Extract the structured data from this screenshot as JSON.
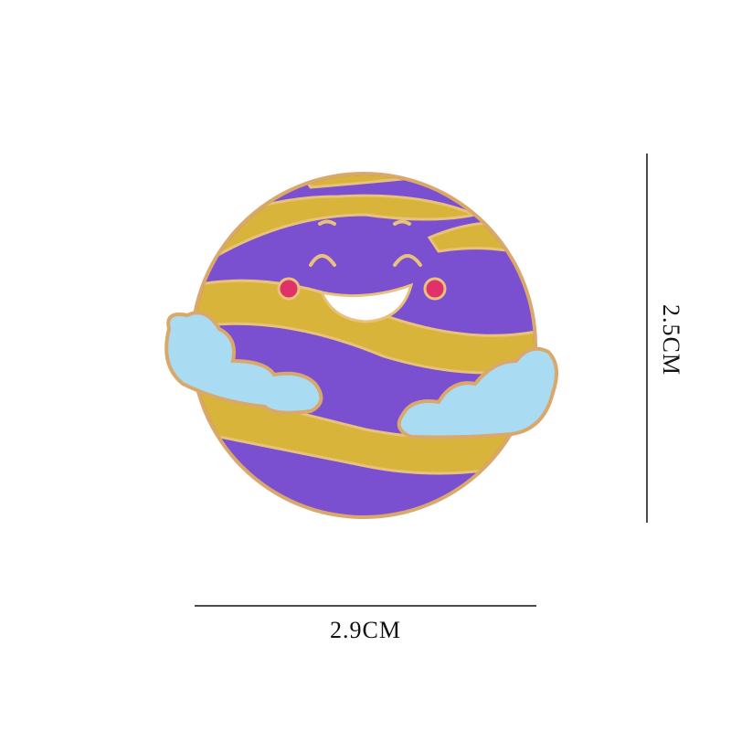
{
  "width_label": "2.9CM",
  "height_label": "2.5CM"
}
